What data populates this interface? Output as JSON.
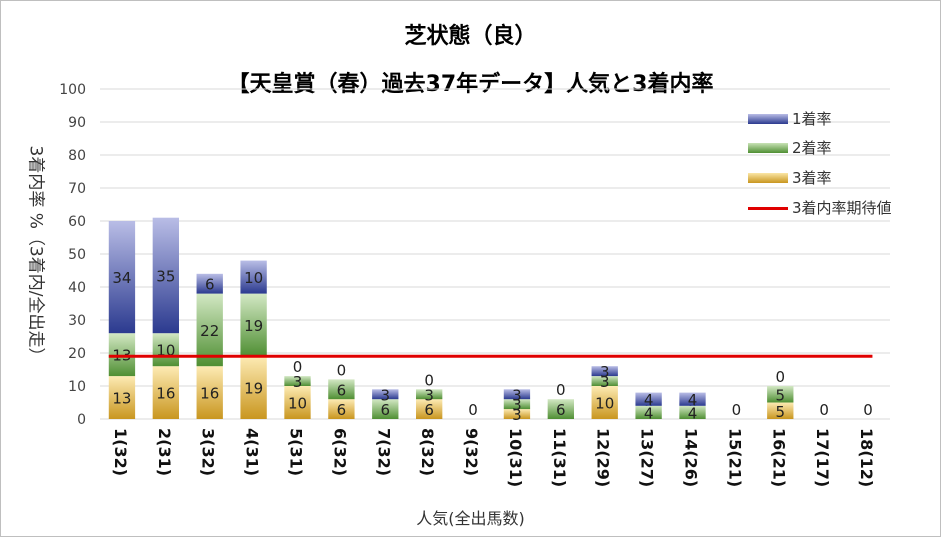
{
  "chart_data": {
    "type": "bar",
    "stacked": true,
    "title": "芝状態（良）",
    "subtitle": "【天皇賞（春）過去37年データ】人気と3着内率",
    "xlabel": "人気(全出馬数)",
    "ylabel": "3着内率 %（3着内/全出走）",
    "ylim": [
      0,
      100
    ],
    "yticks": [
      0,
      10,
      20,
      30,
      40,
      50,
      60,
      70,
      80,
      90,
      100
    ],
    "grid": true,
    "legend_position": "top-right",
    "categories": [
      "1(32)",
      "2(31)",
      "3(32)",
      "4(31)",
      "5(31)",
      "6(32)",
      "7(32)",
      "8(32)",
      "9(32)",
      "10(31)",
      "11(31)",
      "12(29)",
      "13(27)",
      "14(26)",
      "15(21)",
      "16(21)",
      "17(17)",
      "18(12)"
    ],
    "series": [
      {
        "name": "3着率",
        "color": "#d9a830",
        "values": [
          13,
          16,
          16,
          19,
          10,
          6,
          0,
          6,
          0,
          3,
          0,
          10,
          0,
          0,
          0,
          5,
          0,
          0
        ]
      },
      {
        "name": "2着率",
        "color": "#5a9a3c",
        "values": [
          13,
          10,
          22,
          19,
          3,
          6,
          6,
          3,
          0,
          3,
          6,
          3,
          4,
          4,
          0,
          5,
          0,
          0
        ]
      },
      {
        "name": "1着率",
        "color": "#2b3a8f",
        "values": [
          34,
          35,
          6,
          10,
          0,
          0,
          3,
          0,
          0,
          3,
          0,
          3,
          4,
          4,
          0,
          0,
          0,
          0
        ]
      }
    ],
    "labels": [
      {
        "third": "13",
        "second": "13",
        "first": "34"
      },
      {
        "third": "16",
        "second": "10",
        "first": "35"
      },
      {
        "third": "16",
        "second": "22",
        "first": "6"
      },
      {
        "third": "19",
        "second": "19",
        "first": "10"
      },
      {
        "third": "10",
        "second": "3",
        "first": "0"
      },
      {
        "third": "6",
        "second": "6",
        "first": "0"
      },
      {
        "third": "0",
        "second": "6",
        "first": "3"
      },
      {
        "third": "6",
        "second": "3",
        "first": "0"
      },
      {
        "third": "0",
        "second": "",
        "first": ""
      },
      {
        "third": "3",
        "second": "3",
        "first": "3"
      },
      {
        "third": "0",
        "second": "6",
        "first": "0"
      },
      {
        "third": "10",
        "second": "3",
        "first": "3"
      },
      {
        "third": "0",
        "second": "4",
        "first": "4"
      },
      {
        "third": "0",
        "second": "4",
        "first": "4"
      },
      {
        "third": "0",
        "second": "",
        "first": ""
      },
      {
        "third": "5",
        "second": "5",
        "first": "0"
      },
      {
        "third": "0",
        "second": "",
        "first": ""
      },
      {
        "third": "0",
        "second": "",
        "first": ""
      }
    ],
    "expected_line": {
      "name": "3着内率期待値",
      "value": 19,
      "color": "#e00000"
    }
  },
  "legend": [
    "1着率",
    "2着率",
    "3着率",
    "3着内率期待値"
  ]
}
